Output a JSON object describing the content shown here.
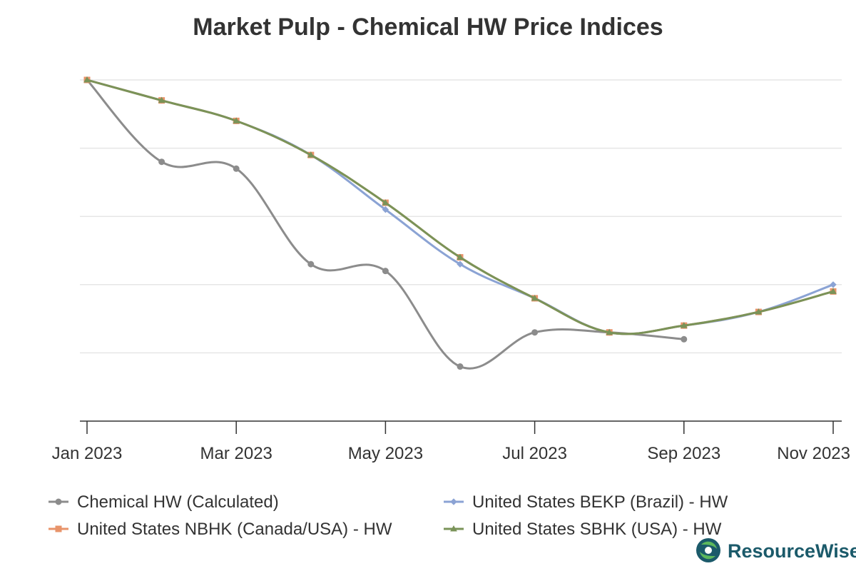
{
  "chart_data": {
    "type": "line",
    "title": "Market Pulp - Chemical HW Price Indices",
    "xlabel": "",
    "ylabel": "",
    "x_tick_labels": [
      "Jan 2023",
      "Mar 2023",
      "May 2023",
      "Jul 2023",
      "Sep 2023",
      "Nov 2023"
    ],
    "x_tick_months": [
      0,
      2,
      4,
      6,
      8,
      10
    ],
    "y_axis_labels_visible": false,
    "ylim": [
      0,
      5
    ],
    "grid": true,
    "legend_position": "bottom",
    "series": [
      {
        "name": "Chemical HW (Calculated)",
        "color": "#8c8c8c",
        "marker": "circle",
        "x": [
          0,
          1,
          2,
          3,
          4,
          5,
          6,
          7,
          8
        ],
        "values": [
          5.0,
          3.8,
          3.7,
          2.3,
          2.2,
          0.8,
          1.3,
          1.3,
          1.2
        ]
      },
      {
        "name": "United States BEKP (Brazil) - HW",
        "color": "#8ba3d4",
        "marker": "diamond",
        "x": [
          0,
          1,
          2,
          3,
          4,
          5,
          6,
          7,
          8,
          9,
          10
        ],
        "values": [
          5.0,
          4.7,
          4.4,
          3.9,
          3.1,
          2.3,
          1.8,
          1.3,
          1.4,
          1.6,
          2.0
        ]
      },
      {
        "name": "United States NBHK (Canada/USA) - HW",
        "color": "#e8936a",
        "marker": "square",
        "x": [
          0,
          1,
          2,
          3,
          4,
          5,
          6,
          7,
          8,
          9,
          10
        ],
        "values": [
          5.0,
          4.7,
          4.4,
          3.9,
          3.2,
          2.4,
          1.8,
          1.3,
          1.4,
          1.6,
          1.9
        ]
      },
      {
        "name": "United States SBHK (USA) - HW",
        "color": "#7a9358",
        "marker": "triangle",
        "x": [
          0,
          1,
          2,
          3,
          4,
          5,
          6,
          7,
          8,
          9,
          10
        ],
        "values": [
          5.0,
          4.7,
          4.4,
          3.9,
          3.2,
          2.4,
          1.8,
          1.3,
          1.4,
          1.6,
          1.9
        ]
      }
    ]
  },
  "branding": {
    "logo_text": "ResourceWise",
    "logo_color": "#1b5a6a",
    "logo_accent": "#5cb85c"
  }
}
